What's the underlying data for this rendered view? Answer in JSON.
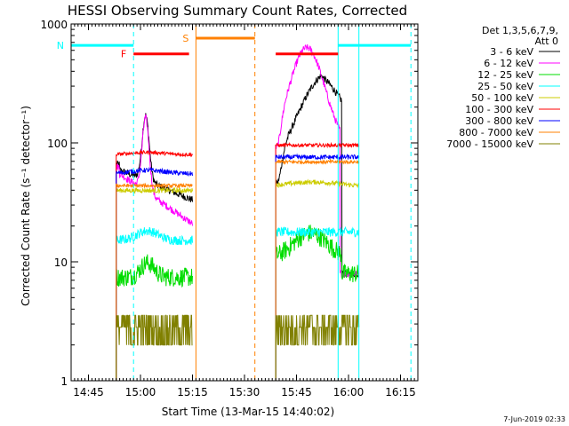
{
  "chart_data": {
    "type": "line",
    "title": "HESSI Observing Summary Count Rates, Corrected",
    "xlabel": "Start Time (13-Mar-15 14:40:02)",
    "ylabel": "Corrected Count Rate (s⁻¹ detector⁻¹)",
    "y_scale": "log",
    "ylim": [
      1,
      1000
    ],
    "xlim_minutes_after_1440": [
      0,
      100
    ],
    "x_ticks": [
      {
        "t": 5,
        "label": "14:45"
      },
      {
        "t": 20,
        "label": "15:00"
      },
      {
        "t": 35,
        "label": "15:15"
      },
      {
        "t": 50,
        "label": "15:30"
      },
      {
        "t": 65,
        "label": "15:45"
      },
      {
        "t": 80,
        "label": "16:00"
      },
      {
        "t": 95,
        "label": "16:15"
      }
    ],
    "y_ticks": [
      {
        "v": 1,
        "label": "1"
      },
      {
        "v": 10,
        "label": "10"
      },
      {
        "v": 100,
        "label": "100"
      },
      {
        "v": 1000,
        "label": "1000"
      }
    ],
    "legend_header": [
      "Det 1,3,5,6,7,9,",
      "Att 0"
    ],
    "legend_placement": "right",
    "series": [
      {
        "name": "3 - 6 keV",
        "color": "#000000"
      },
      {
        "name": "6 - 12 keV",
        "color": "#ff00ff"
      },
      {
        "name": "12 - 25 keV",
        "color": "#00dd00"
      },
      {
        "name": "25 - 50 keV",
        "color": "#00ffff"
      },
      {
        "name": "50 - 100 keV",
        "color": "#cccc00"
      },
      {
        "name": "100 - 300 keV",
        "color": "#ff0000"
      },
      {
        "name": "300 - 800 keV",
        "color": "#0000ff"
      },
      {
        "name": "800 - 7000 keV",
        "color": "#ff8000"
      },
      {
        "name": "7000 - 15000 keV",
        "color": "#808000"
      }
    ],
    "segments": [
      {
        "t_start": 13,
        "t_end": 35
      },
      {
        "t_start": 59,
        "t_end": 83
      }
    ],
    "flag_bars": [
      {
        "label": "N",
        "color": "#00ffff",
        "value": 660,
        "t_start": 0,
        "t_end": 18
      },
      {
        "label": "",
        "color": "#00ffff",
        "value": 660,
        "t_start": 77,
        "t_end": 98
      },
      {
        "label": "F",
        "color": "#ff0000",
        "value": 560,
        "t_start": 18,
        "t_end": 34
      },
      {
        "label": "",
        "color": "#ff0000",
        "value": 560,
        "t_start": 59,
        "t_end": 77
      },
      {
        "label": "S",
        "color": "#ff8000",
        "value": 760,
        "t_start": 36,
        "t_end": 53
      }
    ],
    "vertical_markers": [
      {
        "t": 0,
        "color": "#00ffff",
        "style": "solid"
      },
      {
        "t": 18,
        "color": "#00ffff",
        "style": "dashed"
      },
      {
        "t": 36,
        "color": "#ff8000",
        "style": "solid"
      },
      {
        "t": 53,
        "color": "#ff8000",
        "style": "dashed"
      },
      {
        "t": 77,
        "color": "#00ffff",
        "style": "solid"
      },
      {
        "t": 83,
        "color": "#00ffff",
        "style": "solid"
      },
      {
        "t": 98,
        "color": "#00ffff",
        "style": "dashed"
      }
    ]
  },
  "footer": {
    "date": "7-Jun-2019 02:33"
  }
}
